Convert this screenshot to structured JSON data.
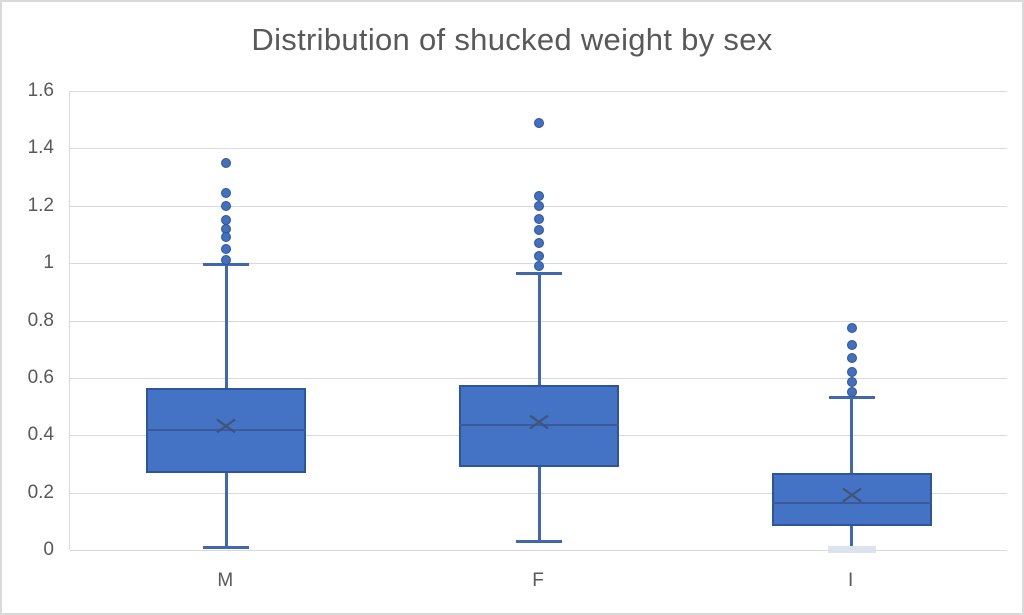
{
  "title": "Distribution of shucked weight by sex",
  "colors": {
    "background": "#FFFFFF",
    "chart_border": "#D9D9D9",
    "gridline": "#D9D9D9",
    "axis_text": "#595959",
    "title_text": "#595959",
    "box_fill": "#4472C4",
    "box_border": "#2E549A",
    "median_line": "#3A5A9C",
    "mean_marker": "#3E5577",
    "whisker": "#4167AE",
    "outlier_fill": "#4270BE",
    "outlier_border": "#2E549A",
    "zero_cap": "#DCE2EE"
  },
  "chart_data": {
    "type": "boxplot",
    "title": "Distribution of shucked weight by sex",
    "categories": [
      "M",
      "F",
      "I"
    ],
    "xlabel": "",
    "ylabel": "",
    "ylim": [
      0,
      1.6
    ],
    "yticks": [
      0,
      0.2,
      0.4,
      0.6,
      0.8,
      1.0,
      1.2,
      1.4,
      1.6
    ],
    "ytick_labels": [
      "0",
      "0.2",
      "0.4",
      "0.6",
      "0.8",
      "1",
      "1.2",
      "1.4",
      "1.6"
    ],
    "grid": true,
    "legend": false,
    "series": [
      {
        "category": "M",
        "whisker_low": 0.01,
        "q1": 0.27,
        "median": 0.42,
        "mean": 0.432,
        "q3": 0.565,
        "whisker_high": 0.995,
        "outliers": [
          1.35,
          1.245,
          1.2,
          1.15,
          1.12,
          1.09,
          1.05,
          1.01
        ]
      },
      {
        "category": "F",
        "whisker_low": 0.03,
        "q1": 0.29,
        "median": 0.435,
        "mean": 0.446,
        "q3": 0.575,
        "whisker_high": 0.965,
        "outliers": [
          1.49,
          1.235,
          1.2,
          1.155,
          1.115,
          1.07,
          1.025,
          0.99
        ]
      },
      {
        "category": "I",
        "whisker_low": 0.001,
        "q1": 0.085,
        "median": 0.165,
        "mean": 0.19,
        "q3": 0.27,
        "whisker_high": 0.53,
        "outliers": [
          0.775,
          0.715,
          0.67,
          0.62,
          0.585,
          0.55
        ],
        "low_cap_color": "#DCE2EE"
      }
    ]
  }
}
